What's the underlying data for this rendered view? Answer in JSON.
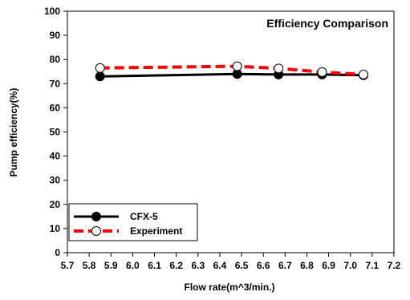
{
  "chart_data": {
    "type": "line",
    "title": "Efficiency Comparison",
    "xlabel": "Flow rate(m^3/min.)",
    "ylabel": "Pump efficiency(%)",
    "xlim": [
      5.7,
      7.2
    ],
    "ylim": [
      0,
      100
    ],
    "x_ticks": [
      "5.7",
      "5.8",
      "5.9",
      "6.0",
      "6.1",
      "6.2",
      "6.3",
      "6.4",
      "6.5",
      "6.6",
      "6.7",
      "6.8",
      "6.9",
      "7.0",
      "7.1",
      "7.2"
    ],
    "y_ticks": [
      "0",
      "10",
      "20",
      "30",
      "40",
      "50",
      "60",
      "70",
      "80",
      "90",
      "100"
    ],
    "grid": false,
    "legend_position": "bottom-left",
    "series": [
      {
        "name": "CFX-5",
        "color": "#000000",
        "line_style": "solid",
        "marker": "filled-circle",
        "x": [
          5.85,
          6.48,
          6.67,
          6.87,
          7.06
        ],
        "y": [
          73.0,
          74.0,
          73.8,
          73.8,
          73.5
        ]
      },
      {
        "name": "Experiment",
        "color": "#ff0000",
        "line_style": "dashed",
        "marker": "open-circle",
        "x": [
          5.85,
          6.48,
          6.67,
          6.87,
          7.06
        ],
        "y": [
          76.5,
          77.2,
          76.3,
          74.8,
          73.8
        ]
      }
    ]
  }
}
